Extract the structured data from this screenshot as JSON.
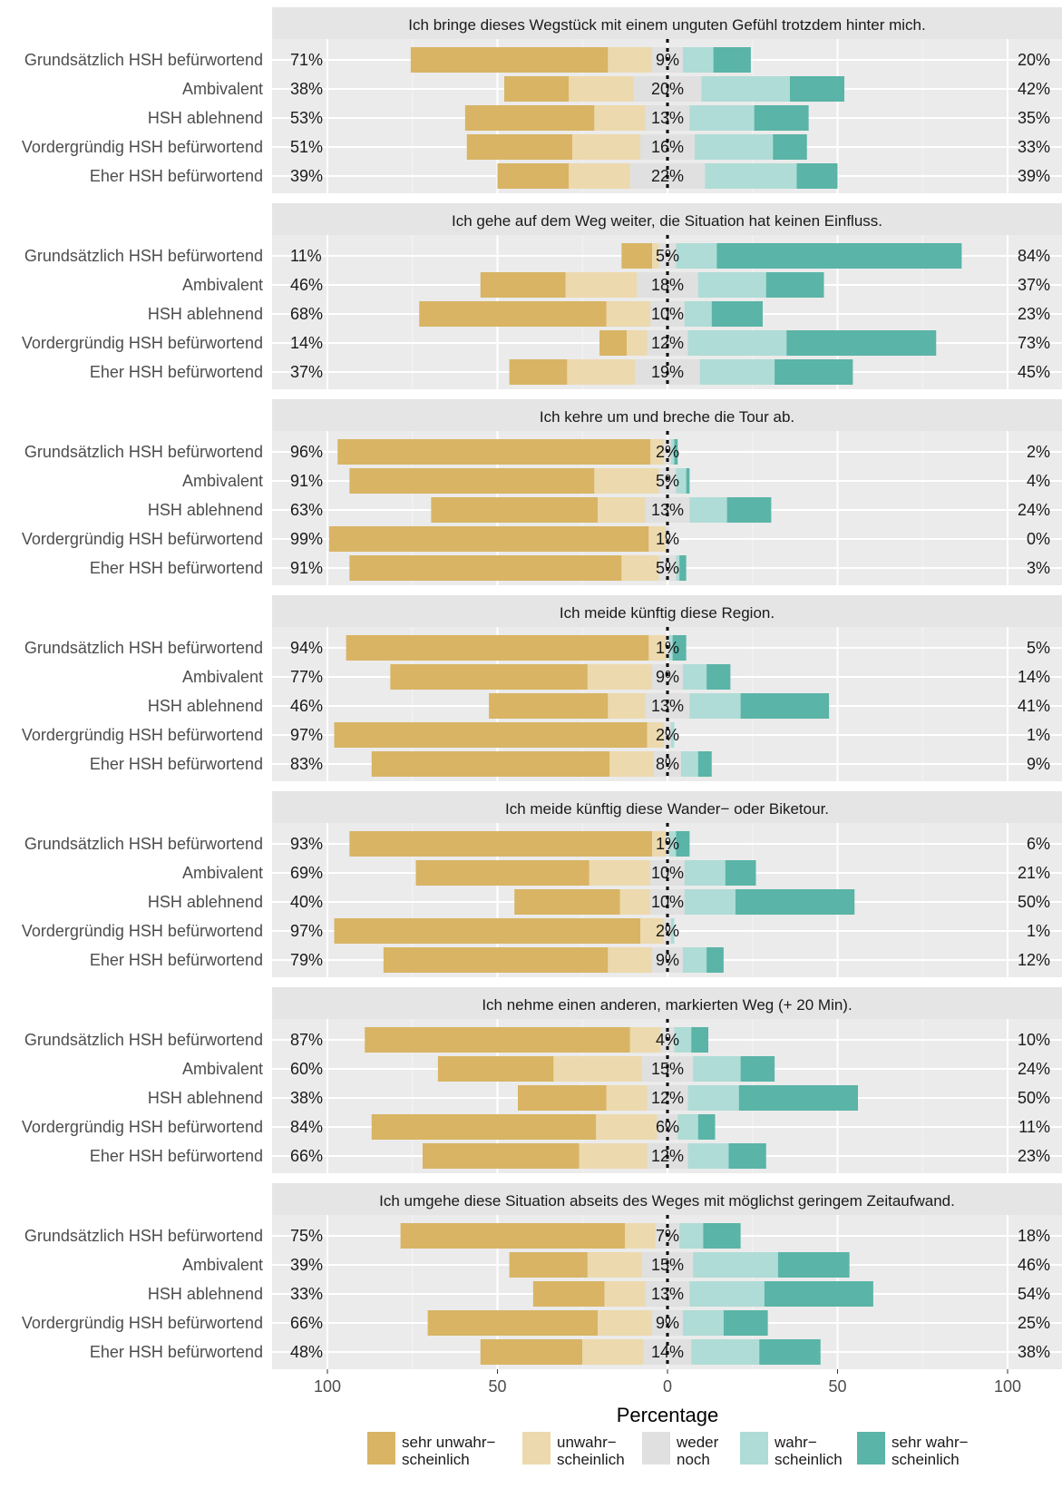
{
  "chart_data": {
    "type": "bar",
    "subtype": "diverging-stacked-likert",
    "xlabel": "Percentage",
    "xlim": [
      -100,
      100
    ],
    "x_ticks": [
      "100",
      "50",
      "0",
      "50",
      "100"
    ],
    "grid": true,
    "legend_position": "bottom",
    "categories": [
      "Grundsätzlich HSH befürwortend",
      "Ambivalent",
      "HSH ablehnend",
      "Vordergründig HSH befürwortend",
      "Eher HSH befürwortend"
    ],
    "levels": [
      "sehr unwahr- scheinlich",
      "unwahr- scheinlich",
      "weder noch",
      "wahr- scheinlich",
      "sehr wahr- scheinlich"
    ],
    "legend": [
      {
        "line1": "sehr unwahr−",
        "line2": "scheinlich"
      },
      {
        "line1": "unwahr−",
        "line2": "scheinlich"
      },
      {
        "line1": "weder",
        "line2": "noch"
      },
      {
        "line1": "wahr−",
        "line2": "scheinlich"
      },
      {
        "line1": "sehr wahr−",
        "line2": "scheinlich"
      }
    ],
    "colors": {
      "sehr_unwahrscheinlich": "#d8b464",
      "unwahrscheinlich": "#ecd9ad",
      "weder_noch": "#e0e0e0",
      "wahrscheinlich": "#afdcd6",
      "sehr_wahrscheinlich": "#5ab4a7",
      "panel_bg": "#ebebeb",
      "strip_bg": "#e5e5e5"
    },
    "panels": [
      {
        "title": "Ich bringe dieses Wegstück mit einem unguten Gefühl trotzdem hinter mich.",
        "rows": [
          {
            "values": [
              58,
              13,
              9,
              9,
              11
            ],
            "left": "71%",
            "neutral": "9%",
            "right": "20%"
          },
          {
            "values": [
              19,
              19,
              20,
              26,
              16
            ],
            "left": "38%",
            "neutral": "20%",
            "right": "42%"
          },
          {
            "values": [
              38,
              15,
              13,
              19,
              16
            ],
            "left": "53%",
            "neutral": "13%",
            "right": "35%"
          },
          {
            "values": [
              31,
              20,
              16,
              23,
              10
            ],
            "left": "51%",
            "neutral": "16%",
            "right": "33%"
          },
          {
            "values": [
              21,
              18,
              22,
              27,
              12
            ],
            "left": "39%",
            "neutral": "22%",
            "right": "39%"
          }
        ]
      },
      {
        "title": "Ich gehe auf dem Weg weiter, die Situation hat keinen Einfluss.",
        "rows": [
          {
            "values": [
              9,
              2,
              5,
              12,
              72
            ],
            "left": "11%",
            "neutral": "5%",
            "right": "84%"
          },
          {
            "values": [
              25,
              21,
              18,
              20,
              17
            ],
            "left": "46%",
            "neutral": "18%",
            "right": "37%"
          },
          {
            "values": [
              55,
              13,
              10,
              8,
              15
            ],
            "left": "68%",
            "neutral": "10%",
            "right": "23%"
          },
          {
            "values": [
              8,
              6,
              12,
              29,
              44
            ],
            "left": "14%",
            "neutral": "12%",
            "right": "73%"
          },
          {
            "values": [
              17,
              20,
              19,
              22,
              23
            ],
            "left": "37%",
            "neutral": "19%",
            "right": "45%"
          }
        ]
      },
      {
        "title": "Ich kehre um und breche die Tour ab.",
        "rows": [
          {
            "values": [
              92,
              4,
              2,
              1,
              1
            ],
            "left": "96%",
            "neutral": "2%",
            "right": "2%"
          },
          {
            "values": [
              72,
              19,
              5,
              3,
              1
            ],
            "left": "91%",
            "neutral": "5%",
            "right": "4%"
          },
          {
            "values": [
              49,
              14,
              13,
              11,
              13
            ],
            "left": "63%",
            "neutral": "13%",
            "right": "24%"
          },
          {
            "values": [
              94,
              5,
              1,
              0,
              0
            ],
            "left": "99%",
            "neutral": "1%",
            "right": "0%"
          },
          {
            "values": [
              80,
              11,
              5,
              1,
              2
            ],
            "left": "91%",
            "neutral": "5%",
            "right": "3%"
          }
        ]
      },
      {
        "title": "Ich meide künftig diese Region.",
        "rows": [
          {
            "values": [
              89,
              5,
              1,
              1,
              4
            ],
            "left": "94%",
            "neutral": "1%",
            "right": "5%"
          },
          {
            "values": [
              58,
              19,
              9,
              7,
              7
            ],
            "left": "77%",
            "neutral": "9%",
            "right": "14%"
          },
          {
            "values": [
              35,
              11,
              13,
              15,
              26
            ],
            "left": "46%",
            "neutral": "13%",
            "right": "41%"
          },
          {
            "values": [
              92,
              5,
              2,
              1,
              0
            ],
            "left": "97%",
            "neutral": "2%",
            "right": "1%"
          },
          {
            "values": [
              70,
              13,
              8,
              5,
              4
            ],
            "left": "83%",
            "neutral": "8%",
            "right": "9%"
          }
        ]
      },
      {
        "title": "Ich meide künftig diese Wander− oder Biketour.",
        "rows": [
          {
            "values": [
              89,
              4,
              1,
              2,
              4
            ],
            "left": "93%",
            "neutral": "1%",
            "right": "6%"
          },
          {
            "values": [
              51,
              18,
              10,
              12,
              9
            ],
            "left": "69%",
            "neutral": "10%",
            "right": "21%"
          },
          {
            "values": [
              31,
              9,
              10,
              15,
              35
            ],
            "left": "40%",
            "neutral": "10%",
            "right": "50%"
          },
          {
            "values": [
              90,
              7,
              2,
              1,
              0
            ],
            "left": "97%",
            "neutral": "2%",
            "right": "1%"
          },
          {
            "values": [
              66,
              13,
              9,
              7,
              5
            ],
            "left": "79%",
            "neutral": "9%",
            "right": "12%"
          }
        ]
      },
      {
        "title": "Ich nehme einen anderen, markierten Weg (+ 20 Min).",
        "rows": [
          {
            "values": [
              78,
              9,
              4,
              5,
              5
            ],
            "left": "87%",
            "neutral": "4%",
            "right": "10%"
          },
          {
            "values": [
              34,
              26,
              15,
              14,
              10
            ],
            "left": "60%",
            "neutral": "15%",
            "right": "24%"
          },
          {
            "values": [
              26,
              12,
              12,
              15,
              35
            ],
            "left": "38%",
            "neutral": "12%",
            "right": "50%"
          },
          {
            "values": [
              66,
              18,
              6,
              6,
              5
            ],
            "left": "84%",
            "neutral": "6%",
            "right": "11%"
          },
          {
            "values": [
              46,
              20,
              12,
              12,
              11
            ],
            "left": "66%",
            "neutral": "12%",
            "right": "23%"
          }
        ]
      },
      {
        "title": "Ich umgehe diese Situation abseits des Weges mit möglichst geringem Zeitaufwand.",
        "rows": [
          {
            "values": [
              66,
              9,
              7,
              7,
              11
            ],
            "left": "75%",
            "neutral": "7%",
            "right": "18%"
          },
          {
            "values": [
              23,
              16,
              15,
              25,
              21
            ],
            "left": "39%",
            "neutral": "15%",
            "right": "46%"
          },
          {
            "values": [
              21,
              12,
              13,
              22,
              32
            ],
            "left": "33%",
            "neutral": "13%",
            "right": "54%"
          },
          {
            "values": [
              50,
              16,
              9,
              12,
              13
            ],
            "left": "66%",
            "neutral": "9%",
            "right": "25%"
          },
          {
            "values": [
              30,
              18,
              14,
              20,
              18
            ],
            "left": "48%",
            "neutral": "14%",
            "right": "38%"
          }
        ]
      }
    ]
  }
}
